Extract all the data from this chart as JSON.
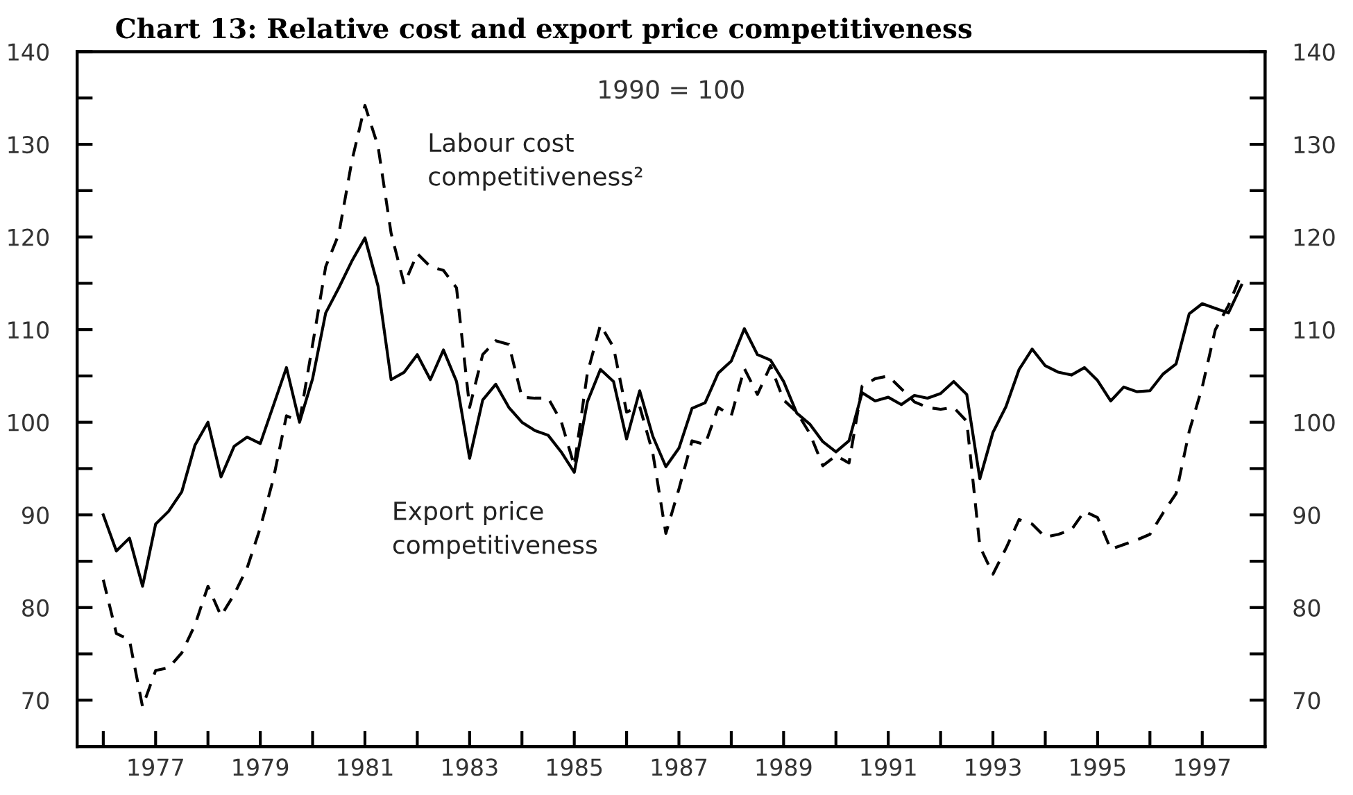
{
  "chart_data": {
    "type": "line",
    "title": "Chart 13: Relative cost and export price competitiveness",
    "annotations": [
      "1990 = 100"
    ],
    "x": [
      1976.0,
      1976.25,
      1976.5,
      1976.75,
      1977.0,
      1977.25,
      1977.5,
      1977.75,
      1978.0,
      1978.25,
      1978.5,
      1978.75,
      1979.0,
      1979.25,
      1979.5,
      1979.75,
      1980.0,
      1980.25,
      1980.5,
      1980.75,
      1981.0,
      1981.25,
      1981.5,
      1981.75,
      1982.0,
      1982.25,
      1982.5,
      1982.75,
      1983.0,
      1983.25,
      1983.5,
      1983.75,
      1984.0,
      1984.25,
      1984.5,
      1984.75,
      1985.0,
      1985.25,
      1985.5,
      1985.75,
      1986.0,
      1986.25,
      1986.5,
      1986.75,
      1987.0,
      1987.25,
      1987.5,
      1987.75,
      1988.0,
      1988.25,
      1988.5,
      1988.75,
      1989.0,
      1989.25,
      1989.5,
      1989.75,
      1990.0,
      1990.25,
      1990.5,
      1990.75,
      1991.0,
      1991.25,
      1991.5,
      1991.75,
      1992.0,
      1992.25,
      1992.5,
      1992.75,
      1993.0,
      1993.25,
      1993.5,
      1993.75,
      1994.0,
      1994.25,
      1994.5,
      1994.75,
      1995.0,
      1995.25,
      1995.5,
      1995.75,
      1996.0,
      1996.25,
      1996.5,
      1996.75,
      1997.0,
      1997.25,
      1997.5,
      1997.75
    ],
    "series": [
      {
        "name": "Labour cost\ncompetitiveness²",
        "color": "#000000",
        "line_style": "dashed",
        "values": [
          83.0,
          77.2,
          76.5,
          69.3,
          73.2,
          73.5,
          75.1,
          78.1,
          82.3,
          79.1,
          81.4,
          84.3,
          88.6,
          93.9,
          100.7,
          100.1,
          108.4,
          116.8,
          120.3,
          128.2,
          134.2,
          129.8,
          120.4,
          114.9,
          118.2,
          116.8,
          116.4,
          114.5,
          101.6,
          107.3,
          108.8,
          108.4,
          102.7,
          102.6,
          102.6,
          100.1,
          95.3,
          105.3,
          110.5,
          108.1,
          101.1,
          101.7,
          96.7,
          88.0,
          92.8,
          98.0,
          97.6,
          101.6,
          100.7,
          105.8,
          103.0,
          106.1,
          102.4,
          101.1,
          98.8,
          95.3,
          96.4,
          95.6,
          103.9,
          104.7,
          105.0,
          103.6,
          102.2,
          101.6,
          101.4,
          101.6,
          100.1,
          86.6,
          83.6,
          86.4,
          89.5,
          89.0,
          87.6,
          87.9,
          88.4,
          90.4,
          89.7,
          86.3,
          86.8,
          87.3,
          87.9,
          90.2,
          92.3,
          99.0,
          103.8,
          110.0,
          112.6,
          116.0
        ]
      },
      {
        "name": "Export price\ncompetitiveness",
        "color": "#000000",
        "line_style": "solid",
        "values": [
          90.0,
          86.1,
          87.5,
          82.3,
          89.0,
          90.4,
          92.5,
          97.5,
          100.0,
          94.1,
          97.4,
          98.4,
          97.7,
          101.8,
          105.9,
          100.0,
          104.7,
          111.8,
          114.5,
          117.4,
          119.9,
          114.7,
          104.6,
          105.4,
          107.3,
          104.6,
          107.8,
          104.4,
          96.1,
          102.4,
          104.1,
          101.6,
          100.0,
          99.1,
          98.6,
          96.8,
          94.6,
          102.2,
          105.7,
          104.4,
          98.2,
          103.4,
          98.5,
          95.2,
          97.2,
          101.5,
          102.1,
          105.3,
          106.6,
          110.1,
          107.3,
          106.7,
          104.4,
          101.0,
          99.8,
          97.9,
          96.8,
          98.0,
          103.2,
          102.3,
          102.7,
          101.9,
          102.9,
          102.6,
          103.1,
          104.4,
          103.0,
          93.9,
          98.9,
          101.7,
          105.7,
          107.9,
          106.1,
          105.4,
          105.1,
          105.9,
          104.5,
          102.3,
          103.8,
          103.3,
          103.4,
          105.2,
          106.3,
          111.7,
          112.8,
          112.3,
          111.8,
          114.8
        ]
      }
    ],
    "xlim": [
      1975.5,
      1998.2
    ],
    "xticks": [
      {
        "value": 1976,
        "label": null
      },
      1977,
      {
        "value": 1978,
        "label": null
      },
      1979,
      {
        "value": 1980,
        "label": null
      },
      1981,
      {
        "value": 1982,
        "label": null
      },
      1983,
      {
        "value": 1984,
        "label": null
      },
      1985,
      {
        "value": 1986,
        "label": null
      },
      1987,
      {
        "value": 1988,
        "label": null
      },
      1989,
      {
        "value": 1990,
        "label": null
      },
      1991,
      {
        "value": 1992,
        "label": null
      },
      1993,
      {
        "value": 1994,
        "label": null
      },
      1995,
      {
        "value": 1996,
        "label": null
      },
      1997
    ],
    "ylim": [
      65,
      140
    ],
    "yticks": [
      70,
      {
        "value": 75,
        "label": null
      },
      80,
      {
        "value": 85,
        "label": null
      },
      90,
      {
        "value": 95,
        "label": null
      },
      100,
      {
        "value": 105,
        "label": null
      },
      110,
      {
        "value": 115,
        "label": null
      },
      120,
      {
        "value": 125,
        "label": null
      },
      130,
      {
        "value": 135,
        "label": null
      },
      140
    ],
    "y2lim": [
      65,
      140
    ],
    "y2ticks": [
      70,
      {
        "value": 75,
        "label": null
      },
      80,
      {
        "value": 85,
        "label": null
      },
      90,
      {
        "value": 95,
        "label": null
      },
      100,
      {
        "value": 105,
        "label": null
      },
      110,
      {
        "value": 115,
        "label": null
      },
      120,
      {
        "value": 125,
        "label": null
      },
      130,
      {
        "value": 135,
        "label": null
      },
      140
    ],
    "grid": false,
    "legend": false,
    "marker": "none"
  }
}
